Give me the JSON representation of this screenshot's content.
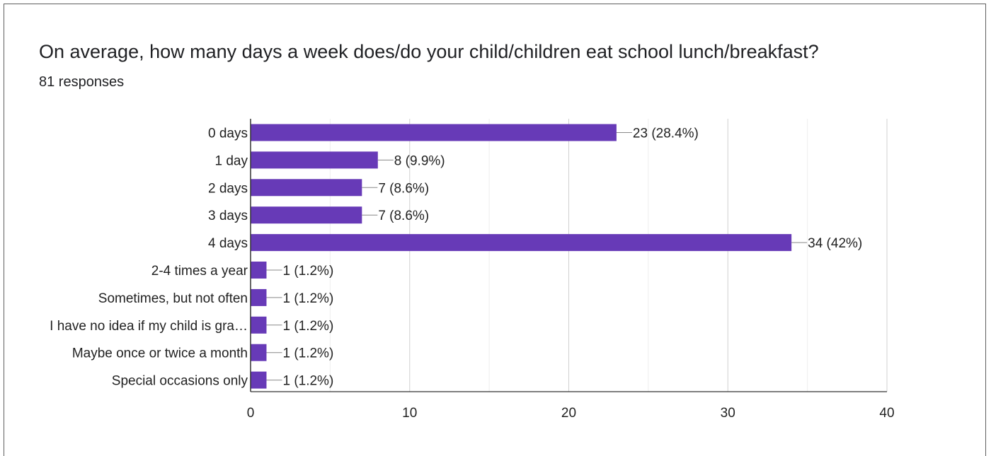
{
  "card": {
    "title": "On average, how many days a week does/do your child/children eat school lunch/breakfast?",
    "subtitle": "81 responses"
  },
  "chart_data": {
    "type": "bar",
    "orientation": "horizontal",
    "categories": [
      "0 days",
      "1 day",
      "2 days",
      "3 days",
      "4 days",
      "2-4 times a year",
      "Sometimes, but not often",
      "I have no idea if my child is gra…",
      "Maybe once or twice a month",
      "Special occasions only"
    ],
    "values": [
      23,
      8,
      7,
      7,
      34,
      1,
      1,
      1,
      1,
      1
    ],
    "data_labels": [
      "23 (28.4%)",
      "8 (9.9%)",
      "7 (8.6%)",
      "7 (8.6%)",
      "34 (42%)",
      "1 (1.2%)",
      "1 (1.2%)",
      "1 (1.2%)",
      "1 (1.2%)",
      "1 (1.2%)"
    ],
    "xlim": [
      0,
      40
    ],
    "x_ticks": [
      0,
      10,
      20,
      30,
      40
    ],
    "minor_gridlines": [
      5,
      15,
      25,
      35
    ],
    "grid": true,
    "bar_color": "#673ab7",
    "title": "On average, how many days a week does/do your child/children eat school lunch/breakfast?",
    "subtitle": "81 responses"
  }
}
